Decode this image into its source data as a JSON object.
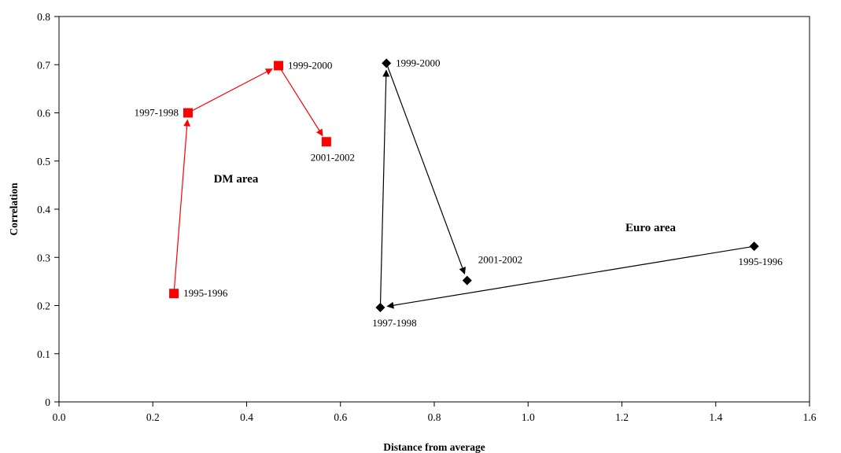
{
  "chart_data": {
    "type": "scatter",
    "xlabel": "Distance from average",
    "ylabel": "Correlation",
    "xlim": [
      0,
      1.6
    ],
    "ylim": [
      0,
      0.8
    ],
    "xticks": [
      "0.0",
      "0.2",
      "0.4",
      "0.6",
      "0.8",
      "1.0",
      "1.2",
      "1.4",
      "1.6"
    ],
    "yticks": [
      "0",
      "0.1",
      "0.2",
      "0.3",
      "0.4",
      "0.5",
      "0.6",
      "0.7",
      "0.8"
    ],
    "grid": false,
    "series": [
      {
        "name": "DM area",
        "color": "#ff0000",
        "marker": "square",
        "connected": "arrows",
        "points": [
          {
            "label": "1995-1996",
            "x": 0.245,
            "y": 0.225
          },
          {
            "label": "1997-1998",
            "x": 0.275,
            "y": 0.6
          },
          {
            "label": "1999-2000",
            "x": 0.468,
            "y": 0.698
          },
          {
            "label": "2001-2002",
            "x": 0.57,
            "y": 0.54
          }
        ]
      },
      {
        "name": "Euro area",
        "color": "#000000",
        "marker": "diamond",
        "connected": "arrows",
        "points": [
          {
            "label": "1995-1996",
            "x": 1.482,
            "y": 0.323
          },
          {
            "label": "1997-1998",
            "x": 0.685,
            "y": 0.196
          },
          {
            "label": "1999-2000",
            "x": 0.698,
            "y": 0.703
          },
          {
            "label": "2001-2002",
            "x": 0.87,
            "y": 0.252
          }
        ]
      }
    ]
  }
}
